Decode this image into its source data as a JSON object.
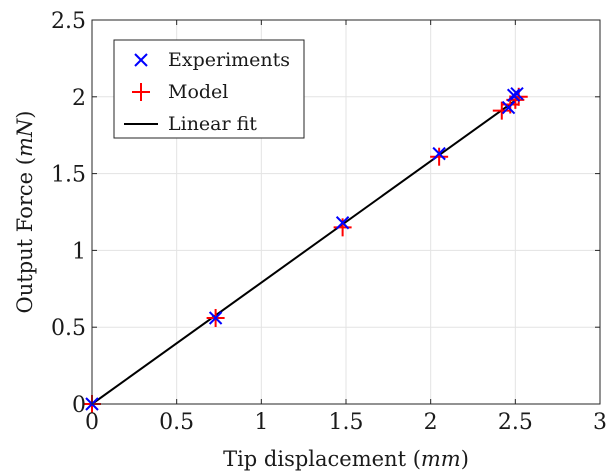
{
  "chart_data": {
    "type": "scatter",
    "xlabel_parts": [
      "Tip displacement (",
      "mm",
      ")"
    ],
    "ylabel_parts": [
      "Output Force (",
      "mN",
      ")"
    ],
    "xlim": [
      0,
      3
    ],
    "ylim": [
      0,
      2.5
    ],
    "x_ticks": [
      "0",
      "0.5",
      "1",
      "1.5",
      "2",
      "2.5",
      "3"
    ],
    "y_ticks": [
      "0",
      "0.5",
      "1",
      "1.5",
      "2",
      "2.5"
    ],
    "grid": true,
    "legend_position": "top-left",
    "series": [
      {
        "name": "Experiments",
        "marker": "x",
        "color": "#0000ff",
        "points": [
          [
            0,
            0
          ],
          [
            0.73,
            0.56
          ],
          [
            1.48,
            1.18
          ],
          [
            2.05,
            1.63
          ],
          [
            2.46,
            1.93
          ],
          [
            2.49,
            2.01
          ],
          [
            2.51,
            2.02
          ]
        ]
      },
      {
        "name": "Model",
        "marker": "+",
        "color": "#ff0000",
        "points": [
          [
            0,
            0
          ],
          [
            0.73,
            0.56
          ],
          [
            1.48,
            1.15
          ],
          [
            2.05,
            1.61
          ],
          [
            2.42,
            1.91
          ],
          [
            2.47,
            1.95
          ],
          [
            2.5,
            1.98
          ],
          [
            2.52,
            2.0
          ]
        ]
      },
      {
        "name": "Linear fit",
        "line": true,
        "color": "#000000",
        "points": [
          [
            0,
            0
          ],
          [
            2.53,
            2.0
          ]
        ]
      }
    ]
  }
}
